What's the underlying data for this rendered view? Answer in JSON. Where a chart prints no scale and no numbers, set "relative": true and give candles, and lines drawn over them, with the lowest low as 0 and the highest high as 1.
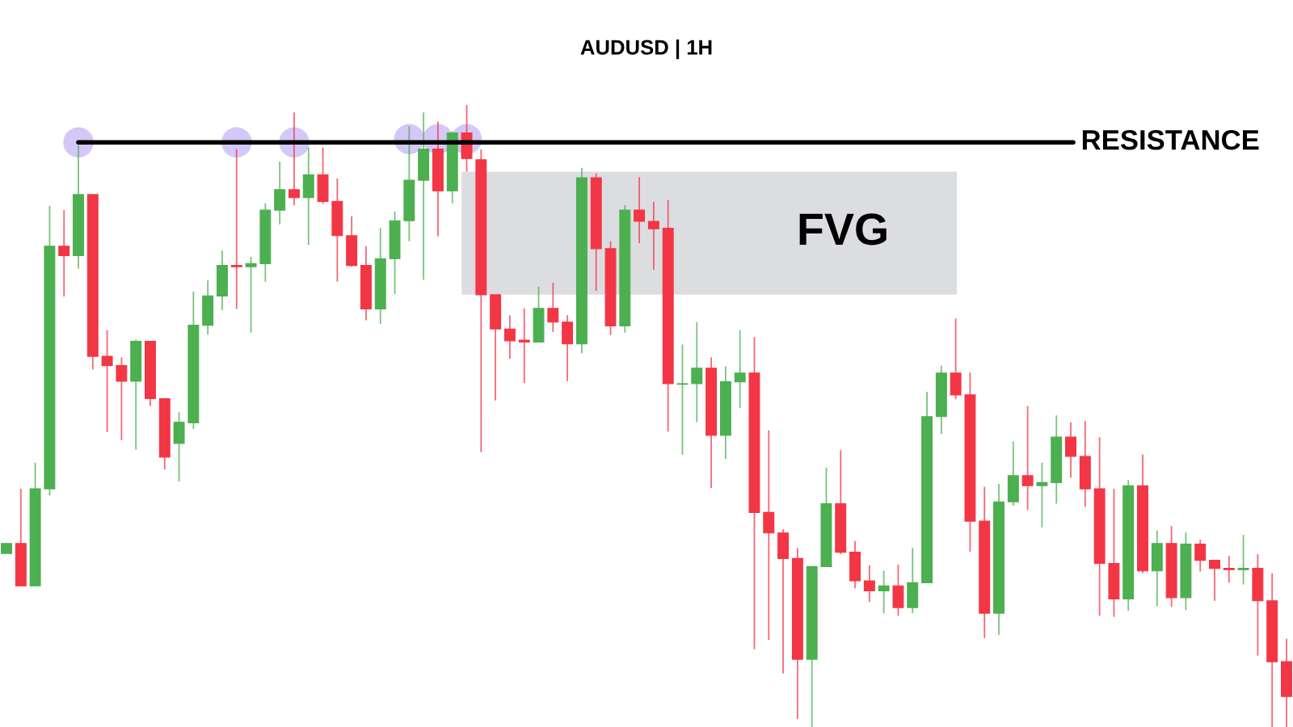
{
  "chart_data": {
    "type": "candlestick",
    "title": "AUDUSD | 1H",
    "relative": true,
    "tick_labels": false,
    "marker": "circle",
    "categories": [
      null,
      null,
      null,
      null,
      null,
      null,
      null,
      null,
      null,
      null,
      null,
      null,
      null,
      null,
      null,
      null,
      null,
      null,
      null,
      null,
      null,
      null,
      null,
      null,
      null,
      null,
      null,
      null,
      null,
      null,
      null,
      null,
      null,
      null,
      null,
      null,
      null,
      null,
      null,
      null,
      null,
      null,
      null,
      null,
      null,
      null,
      null,
      null,
      null,
      null,
      null,
      null,
      null,
      null,
      null,
      null,
      null,
      null,
      null,
      null,
      null,
      null,
      null,
      null,
      null,
      null,
      null,
      null,
      null,
      null,
      null,
      null,
      null,
      null,
      null,
      null,
      null,
      null,
      null,
      null,
      null,
      null,
      null,
      null,
      null,
      null,
      null,
      null,
      null,
      null
    ],
    "ohlc": [
      [
        0.279,
        0.295,
        0.279,
        0.295
      ],
      [
        0.295,
        0.383,
        0.226,
        0.227
      ],
      [
        0.227,
        0.425,
        0.227,
        0.383
      ],
      [
        0.383,
        0.838,
        0.372,
        0.773
      ],
      [
        0.773,
        0.831,
        0.692,
        0.758
      ],
      [
        0.758,
        0.935,
        0.737,
        0.856
      ],
      [
        0.856,
        0.856,
        0.575,
        0.596
      ],
      [
        0.596,
        0.638,
        0.474,
        0.581
      ],
      [
        0.581,
        0.594,
        0.461,
        0.556
      ],
      [
        0.556,
        0.623,
        0.446,
        0.62
      ],
      [
        0.62,
        0.62,
        0.516,
        0.528
      ],
      [
        0.528,
        0.528,
        0.414,
        0.434
      ],
      [
        0.456,
        0.506,
        0.395,
        0.49
      ],
      [
        0.489,
        0.7,
        0.479,
        0.646
      ],
      [
        0.646,
        0.718,
        0.631,
        0.693
      ],
      [
        0.693,
        0.766,
        0.67,
        0.742
      ],
      [
        0.742,
        0.929,
        0.672,
        0.74
      ],
      [
        0.74,
        0.756,
        0.634,
        0.745
      ],
      [
        0.745,
        0.842,
        0.716,
        0.831
      ],
      [
        0.831,
        0.909,
        0.808,
        0.864
      ],
      [
        0.864,
        0.988,
        0.839,
        0.851
      ],
      [
        0.851,
        0.932,
        0.775,
        0.888
      ],
      [
        0.888,
        0.932,
        0.841,
        0.845
      ],
      [
        0.845,
        0.882,
        0.716,
        0.79
      ],
      [
        0.79,
        0.821,
        0.74,
        0.742
      ],
      [
        0.742,
        0.773,
        0.654,
        0.672
      ],
      [
        0.672,
        0.802,
        0.648,
        0.753
      ],
      [
        0.753,
        0.829,
        0.696,
        0.814
      ],
      [
        0.814,
        0.966,
        0.781,
        0.879
      ],
      [
        0.879,
        0.988,
        0.719,
        0.929
      ],
      [
        0.929,
        0.973,
        0.789,
        0.862
      ],
      [
        0.862,
        0.958,
        0.842,
        0.955
      ],
      [
        0.955,
        1.0,
        0.893,
        0.914
      ],
      [
        0.912,
        0.929,
        0.442,
        0.695
      ],
      [
        0.695,
        0.695,
        0.525,
        0.64
      ],
      [
        0.64,
        0.662,
        0.592,
        0.621
      ],
      [
        0.622,
        0.673,
        0.553,
        0.619
      ],
      [
        0.619,
        0.708,
        0.619,
        0.673
      ],
      [
        0.673,
        0.714,
        0.635,
        0.651
      ],
      [
        0.651,
        0.662,
        0.556,
        0.616
      ],
      [
        0.616,
        0.899,
        0.601,
        0.883
      ],
      [
        0.883,
        0.89,
        0.701,
        0.769
      ],
      [
        0.769,
        0.781,
        0.63,
        0.645
      ],
      [
        0.645,
        0.839,
        0.634,
        0.831
      ],
      [
        0.831,
        0.884,
        0.778,
        0.813
      ],
      [
        0.813,
        0.844,
        0.735,
        0.801
      ],
      [
        0.802,
        0.847,
        0.475,
        0.552
      ],
      [
        0.551,
        0.615,
        0.438,
        0.552
      ],
      [
        0.552,
        0.651,
        0.49,
        0.577
      ],
      [
        0.577,
        0.594,
        0.384,
        0.469
      ],
      [
        0.469,
        0.58,
        0.431,
        0.555
      ],
      [
        0.555,
        0.638,
        0.513,
        0.569
      ],
      [
        0.569,
        0.627,
        0.125,
        0.345
      ],
      [
        0.345,
        0.477,
        0.14,
        0.312
      ],
      [
        0.312,
        0.318,
        0.086,
        0.271
      ],
      [
        0.271,
        0.288,
        0.013,
        0.109
      ],
      [
        0.109,
        0.258,
        0,
        0.258
      ],
      [
        0.258,
        0.417,
        0.258,
        0.359
      ],
      [
        0.359,
        0.445,
        0.278,
        0.281
      ],
      [
        0.281,
        0.299,
        0.223,
        0.235
      ],
      [
        0.235,
        0.26,
        0.201,
        0.219
      ],
      [
        0.219,
        0.251,
        0.183,
        0.227
      ],
      [
        0.227,
        0.261,
        0.179,
        0.192
      ],
      [
        0.192,
        0.288,
        0.183,
        0.232
      ],
      [
        0.232,
        0.539,
        0.232,
        0.499
      ],
      [
        0.499,
        0.581,
        0.471,
        0.569
      ],
      [
        0.569,
        0.657,
        0.527,
        0.534
      ],
      [
        0.534,
        0.57,
        0.282,
        0.331
      ],
      [
        0.331,
        0.386,
        0.143,
        0.183
      ],
      [
        0.183,
        0.391,
        0.148,
        0.362
      ],
      [
        0.362,
        0.459,
        0.356,
        0.404
      ],
      [
        0.404,
        0.516,
        0.349,
        0.388
      ],
      [
        0.388,
        0.425,
        0.321,
        0.393
      ],
      [
        0.393,
        0.501,
        0.359,
        0.466
      ],
      [
        0.466,
        0.49,
        0.401,
        0.435
      ],
      [
        0.435,
        0.492,
        0.354,
        0.383
      ],
      [
        0.383,
        0.466,
        0.179,
        0.263
      ],
      [
        0.263,
        0.383,
        0.177,
        0.206
      ],
      [
        0.206,
        0.397,
        0.187,
        0.388
      ],
      [
        0.388,
        0.438,
        0.247,
        0.251
      ],
      [
        0.251,
        0.316,
        0.194,
        0.295
      ],
      [
        0.295,
        0.323,
        0.193,
        0.208
      ],
      [
        0.208,
        0.313,
        0.188,
        0.294
      ],
      [
        0.294,
        0.301,
        0.25,
        0.268
      ],
      [
        0.268,
        0.268,
        0.203,
        0.255
      ],
      [
        0.255,
        0.275,
        0.232,
        0.253
      ],
      [
        0.253,
        0.309,
        0.229,
        0.255
      ],
      [
        0.255,
        0.278,
        0.115,
        0.203
      ],
      [
        0.203,
        0.247,
        0,
        0.105
      ],
      [
        0.105,
        0.142,
        0,
        0.049
      ]
    ],
    "colors": [
      "#4caf50",
      "#f23645",
      "#4caf50",
      "#4caf50",
      "#f23645",
      "#4caf50",
      "#f23645",
      "#f23645",
      "#f23645",
      "#4caf50",
      "#f23645",
      "#f23645",
      "#4caf50",
      "#4caf50",
      "#4caf50",
      "#4caf50",
      "#f23645",
      "#4caf50",
      "#4caf50",
      "#4caf50",
      "#f23645",
      "#4caf50",
      "#f23645",
      "#f23645",
      "#f23645",
      "#f23645",
      "#4caf50",
      "#4caf50",
      "#4caf50",
      "#4caf50",
      "#f23645",
      "#4caf50",
      "#f23645",
      "#f23645",
      "#f23645",
      "#f23645",
      "#f23645",
      "#4caf50",
      "#f23645",
      "#f23645",
      "#4caf50",
      "#f23645",
      "#f23645",
      "#4caf50",
      "#f23645",
      "#f23645",
      "#f23645",
      "#4caf50",
      "#4caf50",
      "#f23645",
      "#4caf50",
      "#4caf50",
      "#f23645",
      "#f23645",
      "#f23645",
      "#f23645",
      "#4caf50",
      "#4caf50",
      "#f23645",
      "#f23645",
      "#f23645",
      "#4caf50",
      "#f23645",
      "#4caf50",
      "#4caf50",
      "#4caf50",
      "#f23645",
      "#f23645",
      "#f23645",
      "#4caf50",
      "#4caf50",
      "#f23645",
      "#4caf50",
      "#4caf50",
      "#f23645",
      "#f23645",
      "#f23645",
      "#f23645",
      "#4caf50",
      "#f23645",
      "#4caf50",
      "#f23645",
      "#4caf50",
      "#f23645",
      "#f23645",
      "#f23645",
      "#4caf50",
      "#f23645",
      "#f23645",
      "#f23645"
    ],
    "series": [
      {
        "type": "scatter",
        "color": "#d4c8f8",
        "values": [
          null,
          null,
          null,
          null,
          null,
          0.94,
          null,
          null,
          null,
          null,
          null,
          null,
          null,
          null,
          null,
          null,
          0.94,
          null,
          null,
          null,
          0.94,
          null,
          null,
          null,
          null,
          null,
          null,
          null,
          0.945,
          null,
          0.945,
          null,
          0.945,
          null,
          null,
          null,
          null,
          null,
          null,
          null,
          null,
          null,
          null,
          null,
          null,
          null,
          null,
          null,
          null,
          null,
          null,
          null,
          null,
          null,
          null,
          null,
          null,
          null,
          null,
          null,
          null,
          null,
          null,
          null,
          null,
          null,
          null,
          null,
          null,
          null,
          null,
          null,
          null,
          null,
          null,
          null,
          null,
          null,
          null,
          null,
          null,
          null,
          null,
          null,
          null,
          null,
          null,
          null,
          null,
          null
        ]
      }
    ],
    "ref_lines": [
      {
        "axis": "y",
        "value": 0.94,
        "label": "RESISTANCE",
        "color": "#000000"
      }
    ],
    "bands": [
      {
        "axis": "y",
        "from": 0.695,
        "to": 0.893,
        "label": "FVG",
        "color": "#dcdde1"
      }
    ]
  }
}
